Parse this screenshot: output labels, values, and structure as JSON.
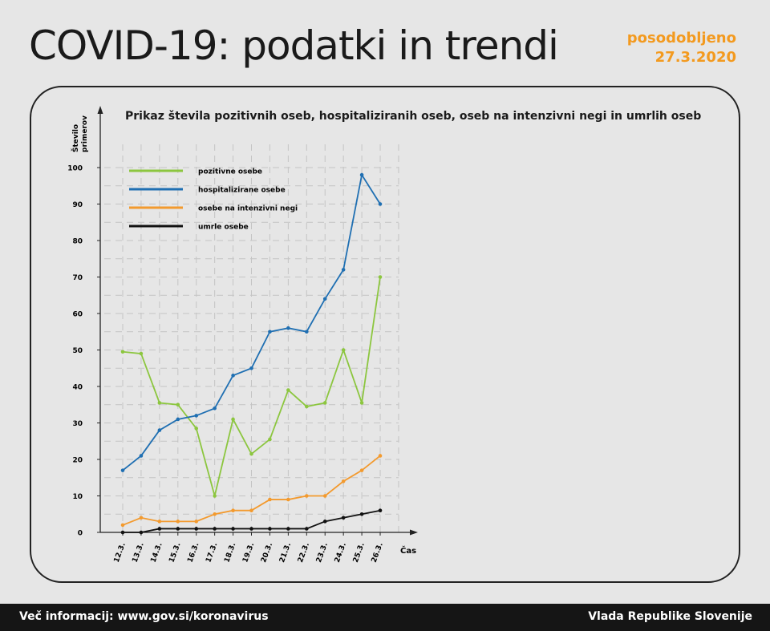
{
  "header": {
    "title": "COVID-19: podatki in trendi",
    "updated_label": "posodobljeno",
    "updated_date": "27.3.2020"
  },
  "footer": {
    "info": "Več informacij: www.gov.si/koronavirus",
    "org": "Vlada Republike Slovenije"
  },
  "chart_data": {
    "type": "line",
    "title": "Prikaz števila pozitivnih oseb, hospitaliziranih oseb, oseb na intenzivni negi in umrlih oseb",
    "ylabel_line1": "Število",
    "ylabel_line2": "primerov",
    "xlabel": "Čas",
    "ylim": [
      0,
      100
    ],
    "yticks": [
      0,
      10,
      20,
      30,
      40,
      50,
      60,
      70,
      80,
      90,
      100
    ],
    "grid": true,
    "legend_position": "top-left",
    "x": [
      "12.3.",
      "13.3.",
      "14.3.",
      "15.3.",
      "16.3.",
      "17.3.",
      "18.3.",
      "19.3.",
      "20.3.",
      "21.3.",
      "22.3.",
      "23.3.",
      "24.3.",
      "25.3.",
      "26.3."
    ],
    "series": [
      {
        "name": "pozitivne osebe",
        "color": "#8cc63f",
        "values": [
          49.5,
          49,
          35.5,
          35,
          28.5,
          10,
          31,
          21.5,
          25.5,
          39,
          34.5,
          35.5,
          50,
          35.5,
          70
        ]
      },
      {
        "name": "hospitalizirane osebe",
        "color": "#1f6fb2",
        "values": [
          17,
          21,
          28,
          31,
          32,
          34,
          43,
          45,
          55,
          56,
          55,
          64,
          72,
          98,
          90
        ]
      },
      {
        "name": "osebe  na intenzivni negi",
        "color": "#f39a2e",
        "values": [
          2,
          4,
          3,
          3,
          3,
          5,
          6,
          6,
          9,
          9,
          10,
          10,
          14,
          17,
          21
        ]
      },
      {
        "name": "umrle osebe",
        "color": "#111111",
        "values": [
          0,
          0,
          1,
          1,
          1,
          1,
          1,
          1,
          1,
          1,
          1,
          3,
          4,
          5,
          6
        ]
      }
    ]
  }
}
